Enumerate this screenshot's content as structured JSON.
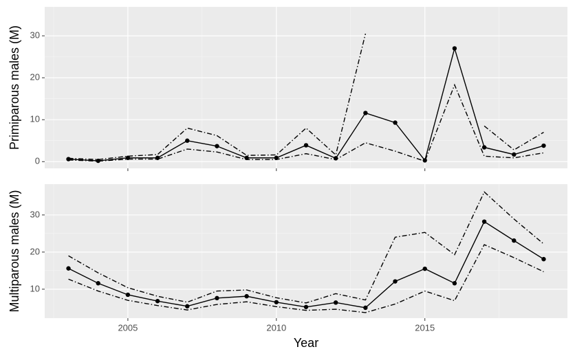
{
  "chart_data": [
    {
      "type": "line",
      "y_label": "Primiparous males (M)",
      "x": [
        2003,
        2004,
        2005,
        2006,
        2007,
        2008,
        2009,
        2010,
        2011,
        2012,
        2013,
        2014,
        2015,
        2016,
        2017,
        2018,
        2019
      ],
      "xlim": [
        2002.2,
        2019.8
      ],
      "ylim": [
        -1.6,
        36.9
      ],
      "yticks": [
        0,
        10,
        20,
        30
      ],
      "grid": true,
      "series": [
        {
          "color": "#000000",
          "dash": "solid",
          "markers": true,
          "values": [
            0.6,
            0.2,
            0.9,
            0.9,
            5.0,
            3.7,
            0.9,
            0.9,
            3.9,
            0.8,
            11.6,
            9.3,
            0.3,
            27.0,
            3.4,
            1.7,
            3.8
          ]
        },
        {
          "color": "#000000",
          "dash": "dashdot",
          "markers": false,
          "values": [
            0.8,
            0.5,
            1.3,
            1.7,
            8.0,
            6.2,
            1.5,
            1.6,
            8.0,
            1.6,
            30.5,
            null,
            null,
            null,
            8.5,
            2.8,
            7.0
          ]
        },
        {
          "color": "#000000",
          "dash": "dashdot",
          "markers": false,
          "values": [
            0.4,
            0.1,
            0.6,
            0.6,
            3.0,
            2.3,
            0.5,
            0.5,
            1.9,
            0.5,
            4.5,
            2.5,
            0.1,
            18.3,
            1.3,
            0.9,
            2.1
          ]
        }
      ]
    },
    {
      "type": "line",
      "y_label": "Multiparous males (M)",
      "x_label": "Year",
      "x": [
        2003,
        2004,
        2005,
        2006,
        2007,
        2008,
        2009,
        2010,
        2011,
        2012,
        2013,
        2014,
        2015,
        2016,
        2017,
        2018,
        2019
      ],
      "xlim": [
        2002.2,
        2019.8
      ],
      "xticks": [
        2005,
        2010,
        2015
      ],
      "ylim": [
        2.2,
        38.3
      ],
      "yticks": [
        10,
        20,
        30
      ],
      "grid": true,
      "series": [
        {
          "color": "#000000",
          "dash": "solid",
          "markers": true,
          "values": [
            15.6,
            11.6,
            8.5,
            6.8,
            5.4,
            7.6,
            8.1,
            6.5,
            5.2,
            6.4,
            5.0,
            12.1,
            15.5,
            11.6,
            28.2,
            23.1,
            18.1
          ]
        },
        {
          "color": "#000000",
          "dash": "dashdot",
          "markers": false,
          "values": [
            19.0,
            14.4,
            10.4,
            8.1,
            6.5,
            9.5,
            9.8,
            7.7,
            6.3,
            8.8,
            7.1,
            24.0,
            25.3,
            19.3,
            36.2,
            28.9,
            22.2
          ]
        },
        {
          "color": "#000000",
          "dash": "dashdot",
          "markers": false,
          "values": [
            12.7,
            9.5,
            7.0,
            5.6,
            4.4,
            5.9,
            6.6,
            5.3,
            4.3,
            4.6,
            3.7,
            6.0,
            9.5,
            6.9,
            22.0,
            18.5,
            14.7
          ]
        }
      ]
    }
  ]
}
